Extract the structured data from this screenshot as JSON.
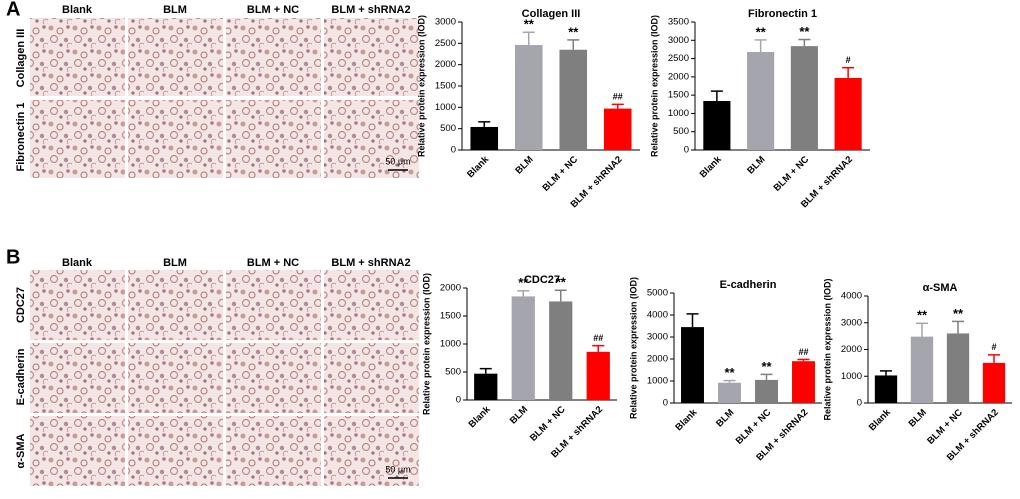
{
  "figure": {
    "panel_a": {
      "label": "A",
      "columns": [
        "Blank",
        "BLM",
        "BLM + NC",
        "BLM  +  shRNA2"
      ],
      "rows": [
        "Collagen III",
        "Fibronectin 1"
      ],
      "scale": "50 μm"
    },
    "panel_b": {
      "label": "B",
      "columns": [
        "Blank",
        "BLM",
        "BLM + NC",
        "BLM  +  shRNA2"
      ],
      "rows": [
        "CDC27",
        "E-cadherin",
        "α-SMA"
      ],
      "scale": "50 μm"
    }
  },
  "chart_data": [
    {
      "type": "bar",
      "title": "Collagen  III",
      "ylabel": "Relative protein expression (IOD)",
      "categories": [
        "Blank",
        "BLM",
        "BLM + NC",
        "BLM + shRNA2"
      ],
      "values": [
        540,
        2460,
        2350,
        970
      ],
      "errors": [
        120,
        300,
        230,
        100
      ],
      "annotations": [
        null,
        "**",
        "**",
        "##"
      ],
      "colors": [
        "#000000",
        "#a5a5ad",
        "#7f7f7f",
        "#ff0000"
      ],
      "ylim": [
        0,
        3000
      ],
      "yticks": [
        0,
        500,
        1000,
        1500,
        2000,
        2500,
        3000
      ]
    },
    {
      "type": "bar",
      "title": "Fibronectin 1",
      "ylabel": "Relative protein expression (IOD)",
      "categories": [
        "Blank",
        "BLM",
        "BLM + NC",
        "BLM + shRNA2"
      ],
      "values": [
        1340,
        2680,
        2840,
        1970
      ],
      "errors": [
        270,
        330,
        180,
        280
      ],
      "annotations": [
        null,
        "**",
        "**",
        "#"
      ],
      "colors": [
        "#000000",
        "#a5a5ad",
        "#7f7f7f",
        "#ff0000"
      ],
      "ylim": [
        0,
        3500
      ],
      "yticks": [
        0,
        500,
        1000,
        1500,
        2000,
        2500,
        3000,
        3500
      ]
    },
    {
      "type": "bar",
      "title": "CDC27",
      "ylabel": "Relative protein expression (IOD)",
      "categories": [
        "Blank",
        "BLM",
        "BLM + NC",
        "BLM + shRNA2"
      ],
      "values": [
        470,
        1850,
        1760,
        860
      ],
      "errors": [
        90,
        100,
        200,
        110
      ],
      "annotations": [
        null,
        "**",
        "**",
        "##"
      ],
      "colors": [
        "#000000",
        "#a5a5ad",
        "#7f7f7f",
        "#ff0000"
      ],
      "ylim": [
        0,
        2000
      ],
      "yticks": [
        0,
        500,
        1000,
        1500,
        2000
      ]
    },
    {
      "type": "bar",
      "title": "E-cadherin",
      "ylabel": "Relative protein expression (IOD)",
      "categories": [
        "Blank",
        "BLM",
        "BLM + NC",
        "BLM + shRNA2"
      ],
      "values": [
        3450,
        920,
        1050,
        1900
      ],
      "errors": [
        600,
        100,
        250,
        80
      ],
      "annotations": [
        null,
        "**",
        "**",
        "##"
      ],
      "colors": [
        "#000000",
        "#a5a5ad",
        "#7f7f7f",
        "#ff0000"
      ],
      "ylim": [
        0,
        5000
      ],
      "yticks": [
        0,
        1000,
        2000,
        3000,
        4000,
        5000
      ]
    },
    {
      "type": "bar",
      "title": "α-SMA",
      "ylabel": "Relative protein expression (IOD)",
      "categories": [
        "Blank",
        "BLM",
        "BLM + NC",
        "BLM + shRNA2"
      ],
      "values": [
        1030,
        2480,
        2600,
        1500
      ],
      "errors": [
        170,
        500,
        450,
        300
      ],
      "annotations": [
        null,
        "**",
        "**",
        "#"
      ],
      "colors": [
        "#000000",
        "#a5a5ad",
        "#7f7f7f",
        "#ff0000"
      ],
      "ylim": [
        0,
        4000
      ],
      "yticks": [
        0,
        1000,
        2000,
        3000,
        4000
      ]
    }
  ]
}
